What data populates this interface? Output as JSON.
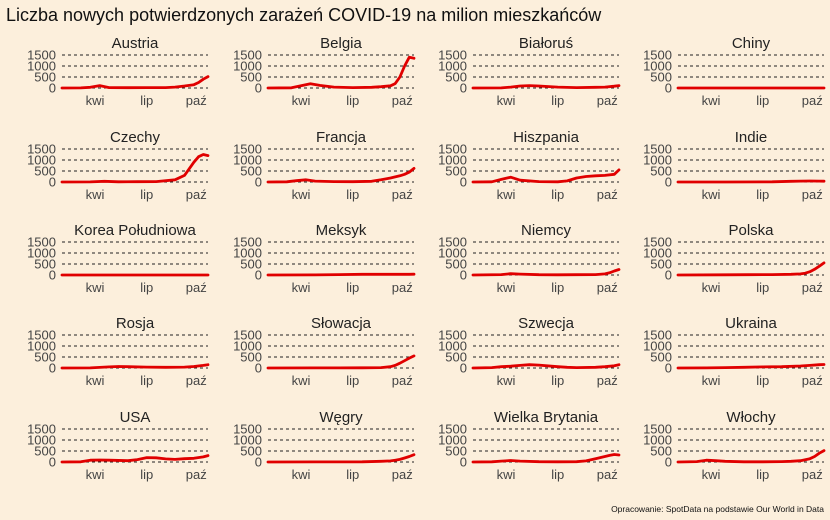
{
  "chart_data": {
    "type": "line",
    "layout": "small-multiples",
    "title": "Liczba nowych potwierdzonych zarażeń COVID-19 na milion mieszkańców",
    "source": "Opracowanie: SpotData na podstawie Our World in Data",
    "ylim": [
      0,
      1500
    ],
    "y_ticks": [
      0,
      500,
      1000,
      1500
    ],
    "y_tick_labels": [
      "0",
      "500",
      "1000",
      "1500"
    ],
    "x_ticks": [
      70,
      180,
      285
    ],
    "x_tick_labels": [
      "kwi",
      "lip",
      "paź"
    ],
    "grid": true,
    "color": "#e00000",
    "panels": [
      {
        "title": "Austria",
        "x": [
          0,
          40,
          60,
          80,
          100,
          140,
          180,
          220,
          240,
          260,
          280,
          290,
          300,
          310
        ],
        "y": [
          0,
          5,
          30,
          110,
          20,
          15,
          20,
          20,
          40,
          90,
          150,
          250,
          400,
          520
        ]
      },
      {
        "title": "Belgia",
        "x": [
          0,
          50,
          70,
          90,
          110,
          140,
          180,
          220,
          240,
          260,
          270,
          280,
          290,
          300,
          310
        ],
        "y": [
          0,
          10,
          100,
          190,
          120,
          40,
          20,
          30,
          60,
          100,
          200,
          500,
          1000,
          1400,
          1350
        ]
      },
      {
        "title": "Białoruś",
        "x": [
          0,
          60,
          80,
          100,
          120,
          140,
          180,
          220,
          260,
          280,
          300,
          310
        ],
        "y": [
          0,
          5,
          40,
          90,
          110,
          90,
          40,
          20,
          30,
          40,
          80,
          110
        ]
      },
      {
        "title": "Chiny",
        "x": [
          0,
          310
        ],
        "y": [
          0,
          0
        ]
      },
      {
        "title": "Czechy",
        "x": [
          0,
          60,
          90,
          120,
          160,
          200,
          240,
          260,
          270,
          280,
          290,
          300,
          310
        ],
        "y": [
          0,
          5,
          30,
          10,
          15,
          20,
          100,
          300,
          600,
          900,
          1150,
          1250,
          1200
        ]
      },
      {
        "title": "Francja",
        "x": [
          0,
          40,
          60,
          80,
          100,
          140,
          180,
          220,
          240,
          260,
          280,
          290,
          300,
          310
        ],
        "y": [
          0,
          10,
          60,
          100,
          40,
          20,
          15,
          30,
          100,
          180,
          280,
          350,
          450,
          620
        ]
      },
      {
        "title": "Hiszpania",
        "x": [
          0,
          40,
          60,
          80,
          100,
          140,
          180,
          200,
          220,
          240,
          260,
          280,
          300,
          310
        ],
        "y": [
          0,
          10,
          120,
          220,
          80,
          20,
          10,
          50,
          180,
          250,
          280,
          300,
          350,
          550
        ]
      },
      {
        "title": "Indie",
        "x": [
          0,
          100,
          200,
          240,
          260,
          280,
          300,
          310
        ],
        "y": [
          0,
          2,
          10,
          30,
          40,
          45,
          40,
          35
        ]
      },
      {
        "title": "Korea Południowa",
        "x": [
          0,
          310
        ],
        "y": [
          0,
          1
        ]
      },
      {
        "title": "Meksyk",
        "x": [
          0,
          100,
          150,
          200,
          250,
          300,
          310
        ],
        "y": [
          0,
          5,
          20,
          30,
          30,
          30,
          35
        ]
      },
      {
        "title": "Niemcy",
        "x": [
          0,
          60,
          80,
          100,
          140,
          180,
          220,
          260,
          280,
          290,
          300,
          310
        ],
        "y": [
          0,
          20,
          60,
          40,
          15,
          10,
          15,
          20,
          50,
          100,
          180,
          250
        ]
      },
      {
        "title": "Polska",
        "x": [
          0,
          100,
          150,
          200,
          240,
          260,
          270,
          280,
          290,
          300,
          310
        ],
        "y": [
          0,
          10,
          15,
          20,
          30,
          50,
          80,
          150,
          260,
          400,
          550
        ]
      },
      {
        "title": "Rosja",
        "x": [
          0,
          60,
          100,
          120,
          140,
          180,
          220,
          260,
          280,
          300,
          310
        ],
        "y": [
          0,
          5,
          50,
          70,
          60,
          40,
          30,
          40,
          70,
          120,
          150
        ]
      },
      {
        "title": "Słowacja",
        "x": [
          0,
          100,
          150,
          200,
          240,
          260,
          270,
          280,
          290,
          300,
          310
        ],
        "y": [
          0,
          5,
          5,
          10,
          20,
          60,
          120,
          220,
          330,
          450,
          550
        ]
      },
      {
        "title": "Szwecja",
        "x": [
          0,
          40,
          60,
          80,
          100,
          120,
          140,
          180,
          200,
          220,
          260,
          280,
          300,
          310
        ],
        "y": [
          0,
          20,
          60,
          80,
          120,
          150,
          130,
          60,
          30,
          20,
          30,
          60,
          100,
          150
        ]
      },
      {
        "title": "Ukraina",
        "x": [
          0,
          60,
          100,
          140,
          180,
          220,
          260,
          280,
          300,
          310
        ],
        "y": [
          0,
          5,
          20,
          30,
          50,
          60,
          90,
          120,
          150,
          160
        ]
      },
      {
        "title": "USA",
        "x": [
          0,
          40,
          60,
          80,
          100,
          140,
          160,
          180,
          200,
          220,
          240,
          260,
          280,
          300,
          310
        ],
        "y": [
          0,
          10,
          80,
          90,
          80,
          60,
          110,
          200,
          190,
          140,
          120,
          150,
          170,
          230,
          290
        ]
      },
      {
        "title": "Węgry",
        "x": [
          0,
          100,
          150,
          200,
          240,
          260,
          270,
          280,
          290,
          300,
          310
        ],
        "y": [
          0,
          5,
          5,
          10,
          30,
          50,
          80,
          120,
          180,
          250,
          330
        ]
      },
      {
        "title": "Wielka Brytania",
        "x": [
          0,
          40,
          60,
          80,
          100,
          140,
          180,
          220,
          240,
          260,
          280,
          290,
          300,
          310
        ],
        "y": [
          0,
          10,
          40,
          70,
          40,
          15,
          10,
          15,
          50,
          150,
          250,
          300,
          340,
          320
        ]
      },
      {
        "title": "Włochy",
        "x": [
          0,
          40,
          60,
          80,
          100,
          140,
          180,
          220,
          240,
          260,
          280,
          290,
          300,
          310
        ],
        "y": [
          0,
          20,
          80,
          60,
          30,
          10,
          10,
          20,
          30,
          60,
          150,
          250,
          400,
          520
        ]
      }
    ]
  }
}
